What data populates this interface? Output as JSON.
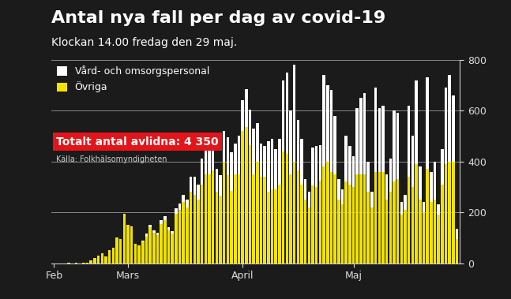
{
  "chart_data": {
    "type": "bar",
    "title": "Antal nya fall per dag av covid-19",
    "subtitle": "Klockan 14.00 fredag den 29 maj.",
    "annotation": "Totalt antal avlidna: 4 350",
    "source": "Källa: Folkhälsomyndigheten",
    "stacked": true,
    "grid": true,
    "legend": "upper left",
    "categories": [
      "Feb",
      null,
      null,
      null,
      null,
      null,
      null,
      null,
      null,
      null,
      null,
      null,
      null,
      null,
      null,
      null,
      null,
      null,
      null,
      null,
      "Mars",
      null,
      null,
      null,
      null,
      null,
      null,
      null,
      null,
      null,
      null,
      null,
      null,
      null,
      null,
      null,
      null,
      null,
      null,
      null,
      null,
      null,
      null,
      null,
      null,
      null,
      null,
      null,
      null,
      null,
      null,
      "April",
      null,
      null,
      null,
      null,
      null,
      null,
      null,
      null,
      null,
      null,
      null,
      null,
      null,
      null,
      null,
      null,
      null,
      null,
      null,
      null,
      null,
      null,
      null,
      null,
      null,
      null,
      null,
      null,
      null,
      "Maj",
      null,
      null,
      null,
      null,
      null,
      null,
      null,
      null,
      null,
      null,
      null,
      null,
      null,
      null,
      null,
      null,
      null,
      null,
      null,
      null,
      null,
      null,
      null,
      null,
      null,
      null,
      null,
      null
    ],
    "series": [
      {
        "name": "Vård- och omsorgspersonal",
        "color": "#ffffff",
        "values": [
          0,
          0,
          0,
          0,
          0,
          0,
          0,
          0,
          0,
          0,
          0,
          0,
          0,
          0,
          0,
          0,
          0,
          0,
          0,
          0,
          0,
          5,
          0,
          0,
          5,
          10,
          10,
          10,
          10,
          15,
          15,
          10,
          10,
          20,
          25,
          30,
          30,
          60,
          70,
          60,
          100,
          120,
          130,
          140,
          90,
          80,
          120,
          150,
          150,
          120,
          150,
          120,
          150,
          140,
          180,
          150,
          130,
          120,
          200,
          200,
          160,
          180,
          280,
          320,
          250,
          380,
          200,
          180,
          80,
          60,
          150,
          160,
          140,
          360,
          300,
          320,
          230,
          80,
          60,
          180,
          150,
          120,
          260,
          300,
          320,
          120,
          60,
          330,
          250,
          260,
          100,
          130,
          280,
          260,
          50,
          60,
          280,
          200,
          330,
          130,
          40,
          360,
          120,
          150,
          40,
          140,
          300,
          340,
          260,
          40
        ]
      },
      {
        "name": "Övriga",
        "color": "#f2e400",
        "values": [
          0,
          0,
          0,
          0,
          2,
          0,
          1,
          0,
          2,
          3,
          12,
          20,
          30,
          40,
          25,
          50,
          60,
          100,
          95,
          195,
          150,
          140,
          75,
          70,
          85,
          105,
          140,
          120,
          110,
          155,
          170,
          130,
          115,
          195,
          210,
          240,
          220,
          280,
          270,
          250,
          310,
          350,
          350,
          365,
          280,
          265,
          400,
          345,
          285,
          350,
          350,
          520,
          535,
          465,
          350,
          400,
          340,
          340,
          280,
          290,
          290,
          310,
          440,
          430,
          350,
          400,
          365,
          310,
          250,
          220,
          305,
          300,
          325,
          380,
          400,
          360,
          350,
          250,
          230,
          320,
          310,
          300,
          350,
          350,
          350,
          280,
          220,
          360,
          360,
          360,
          250,
          280,
          320,
          330,
          190,
          210,
          340,
          300,
          390,
          250,
          200,
          370,
          240,
          250,
          190,
          310,
          390,
          400,
          400,
          95
        ]
      }
    ],
    "ylim": [
      0,
      800
    ],
    "yticks": [
      0,
      200,
      400,
      600,
      800
    ]
  }
}
